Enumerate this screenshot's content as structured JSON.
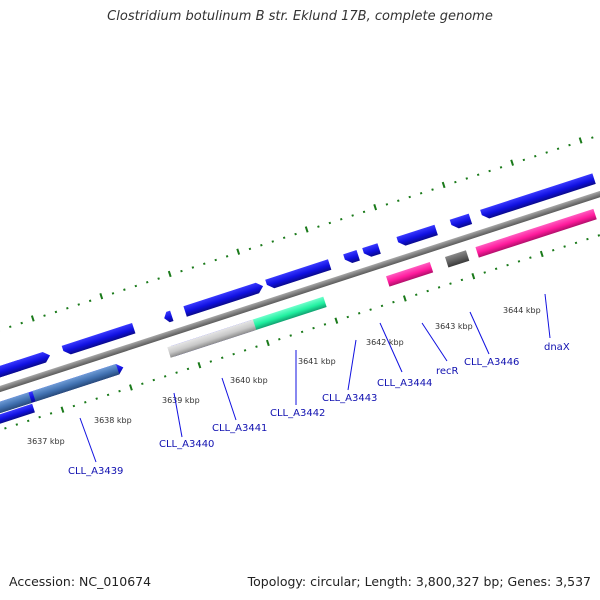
{
  "title": "Clostridium botulinum B str. Eklund 17B, complete genome",
  "footer": {
    "accession": "Accession: NC_010674",
    "stats": "Topology: circular; Length: 3,800,327 bp; Genes: 3,537"
  },
  "ruler": {
    "unit": "kbp",
    "ticks": [
      "3637 kbp",
      "3638 kbp",
      "3639 kbp",
      "3640 kbp",
      "3641 kbp",
      "3642 kbp",
      "3643 kbp",
      "3644 kbp"
    ]
  },
  "genes": [
    {
      "name": "CLL_A3439"
    },
    {
      "name": "CLL_A3440"
    },
    {
      "name": "CLL_A3441"
    },
    {
      "name": "CLL_A3442"
    },
    {
      "name": "CLL_A3443"
    },
    {
      "name": "CLL_A3444"
    },
    {
      "name": "recR"
    },
    {
      "name": "CLL_A3446"
    },
    {
      "name": "dnaX"
    }
  ],
  "colors": {
    "backbone": "#808080",
    "cds": "#1010e0",
    "trna_like_pink": "#ff1a9c",
    "teal": "#20f0a0",
    "steel_blue": "#4070b0",
    "light_gray": "#c8c8c8",
    "dark_gray": "#606060",
    "tick_green": "#1a7a1a",
    "label_blue": "#1010b0"
  }
}
